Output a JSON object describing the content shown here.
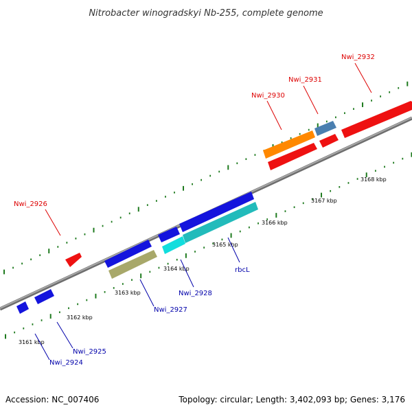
{
  "title": "Nitrobacter winogradskyi Nb-255, complete genome",
  "footer": {
    "accession": "Accession: NC_007406",
    "summary": "Topology: circular; Length: 3,402,093 bp; Genes: 3,176"
  },
  "colors": {
    "backbone": "#888888",
    "tick": "#1e7a1e",
    "label_red": "#dd0000",
    "label_blue": "#0000aa",
    "leader_red": "#dd0000",
    "leader_blue": "#0000aa"
  },
  "kbp_labels": [
    "3161 kbp",
    "3162 kbp",
    "3163 kbp",
    "3164 kbp",
    "3165 kbp",
    "3166 kbp",
    "3167 kbp",
    "3168 kbp"
  ],
  "genes_forward": [
    {
      "id": "fwd-1",
      "color": "#ee1111"
    },
    {
      "id": "fwd-2",
      "color": "#ff8800"
    },
    {
      "id": "fwd-3",
      "color": "#ee1111"
    },
    {
      "id": "fwd-4",
      "color": "#4a7fb0"
    },
    {
      "id": "fwd-5",
      "color": "#ee1111"
    },
    {
      "id": "fwd-6",
      "color": "#ee1111"
    }
  ],
  "genes_reverse": [
    {
      "id": "rev-1",
      "color": "#1414dd"
    },
    {
      "id": "rev-2",
      "color": "#1414dd"
    },
    {
      "id": "rev-3",
      "color": "#1414dd"
    },
    {
      "id": "rev-4",
      "color": "#a8a86a"
    },
    {
      "id": "rev-5",
      "color": "#1414dd"
    },
    {
      "id": "rev-6",
      "color": "#11dddd"
    },
    {
      "id": "rev-7",
      "color": "#1414dd"
    },
    {
      "id": "rev-8",
      "color": "#22bbbb"
    }
  ],
  "gene_labels": [
    {
      "id": "Nwi_2932",
      "text": "Nwi_2932",
      "strand": "forward"
    },
    {
      "id": "Nwi_2931",
      "text": "Nwi_2931",
      "strand": "forward"
    },
    {
      "id": "Nwi_2930",
      "text": "Nwi_2930",
      "strand": "forward"
    },
    {
      "id": "Nwi_2926",
      "text": "Nwi_2926",
      "strand": "forward"
    },
    {
      "id": "rbcL",
      "text": "rbcL",
      "strand": "reverse"
    },
    {
      "id": "Nwi_2928",
      "text": "Nwi_2928",
      "strand": "reverse"
    },
    {
      "id": "Nwi_2927",
      "text": "Nwi_2927",
      "strand": "reverse"
    },
    {
      "id": "Nwi_2925",
      "text": "Nwi_2925",
      "strand": "reverse"
    },
    {
      "id": "Nwi_2924",
      "text": "Nwi_2924",
      "strand": "reverse"
    }
  ]
}
